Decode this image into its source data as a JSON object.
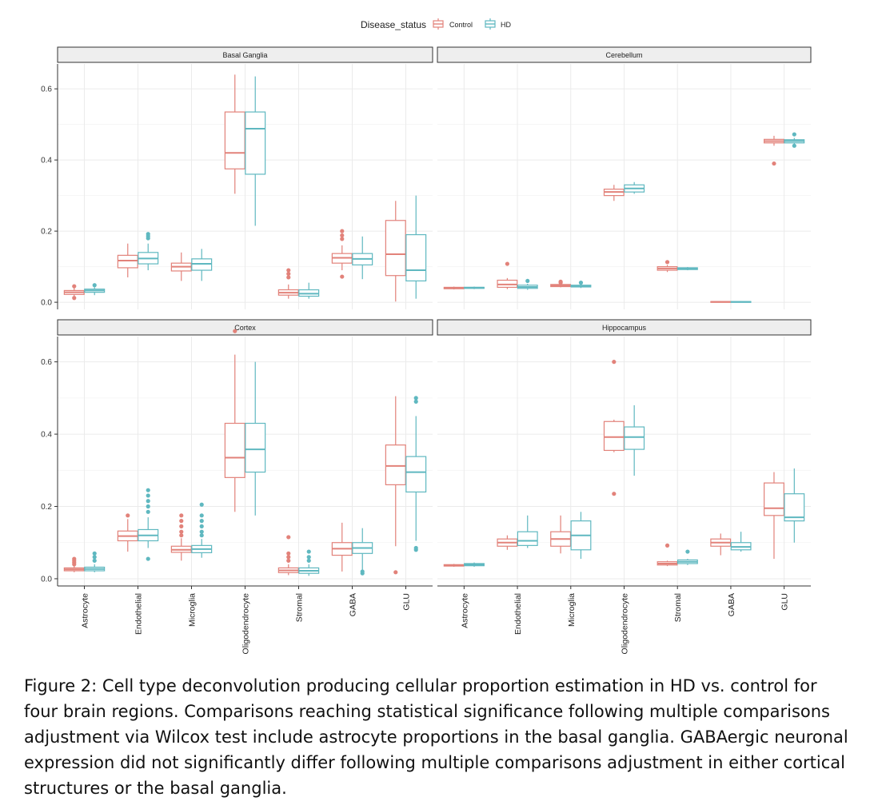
{
  "legend": {
    "title": "Disease_status"
  },
  "caption": "Figure 2: Cell type deconvolution producing cellular proportion estimation in HD vs. control for four brain regions. Comparisons reaching statistical significance following multiple comparisons adjustment via Wilcox test include astrocyte proportions in the basal ganglia. GABAergic neuronal expression did not significantly differ following multiple comparisons adjustment in either cortical structures or the basal ganglia.",
  "chart_data": {
    "type": "boxplot",
    "facet_layout": "2x2",
    "legend_position": "top",
    "categories": [
      "Astrocyte",
      "Endothelial",
      "Microglia",
      "Oligodendrocyte",
      "Stromal",
      "GABA",
      "GLU"
    ],
    "y_ticks": [
      0.0,
      0.2,
      0.4,
      0.6
    ],
    "y_tick_labels": [
      "0.0",
      "0.2",
      "0.4",
      "0.6"
    ],
    "ylim": [
      -0.02,
      0.67
    ],
    "grid": true,
    "series_names": [
      "Control",
      "HD"
    ],
    "colors": {
      "Control": "#e2827a",
      "HD": "#5fb8c0",
      "strip_fill": "#eeeeee"
    },
    "panels": [
      {
        "title": "Basal Ganglia",
        "Control": [
          {
            "min": 0.015,
            "q1": 0.022,
            "med": 0.028,
            "q3": 0.033,
            "max": 0.04,
            "out": [
              0.012,
              0.045
            ]
          },
          {
            "min": 0.07,
            "q1": 0.097,
            "med": 0.117,
            "q3": 0.132,
            "max": 0.165,
            "out": []
          },
          {
            "min": 0.06,
            "q1": 0.088,
            "med": 0.1,
            "q3": 0.11,
            "max": 0.14,
            "out": []
          },
          {
            "min": 0.305,
            "q1": 0.375,
            "med": 0.42,
            "q3": 0.535,
            "max": 0.64,
            "out": []
          },
          {
            "min": 0.01,
            "q1": 0.02,
            "med": 0.027,
            "q3": 0.035,
            "max": 0.05,
            "out": [
              0.07,
              0.08,
              0.09
            ]
          },
          {
            "min": 0.09,
            "q1": 0.11,
            "med": 0.125,
            "q3": 0.137,
            "max": 0.16,
            "out": [
              0.072,
              0.178,
              0.188,
              0.2
            ]
          },
          {
            "min": 0.002,
            "q1": 0.075,
            "med": 0.135,
            "q3": 0.23,
            "max": 0.285,
            "out": []
          }
        ],
        "HD": [
          {
            "min": 0.02,
            "q1": 0.028,
            "med": 0.033,
            "q3": 0.037,
            "max": 0.042,
            "out": [
              0.048
            ]
          },
          {
            "min": 0.09,
            "q1": 0.108,
            "med": 0.123,
            "q3": 0.14,
            "max": 0.165,
            "out": [
              0.18,
              0.186,
              0.192
            ]
          },
          {
            "min": 0.06,
            "q1": 0.09,
            "med": 0.108,
            "q3": 0.122,
            "max": 0.15,
            "out": []
          },
          {
            "min": 0.215,
            "q1": 0.36,
            "med": 0.488,
            "q3": 0.535,
            "max": 0.635,
            "out": []
          },
          {
            "min": 0.01,
            "q1": 0.017,
            "med": 0.024,
            "q3": 0.035,
            "max": 0.055,
            "out": []
          },
          {
            "min": 0.065,
            "q1": 0.105,
            "med": 0.122,
            "q3": 0.137,
            "max": 0.185,
            "out": []
          },
          {
            "min": 0.01,
            "q1": 0.06,
            "med": 0.09,
            "q3": 0.19,
            "max": 0.3,
            "out": []
          }
        ]
      },
      {
        "title": "Cerebellum",
        "Control": [
          {
            "min": 0.036,
            "q1": 0.038,
            "med": 0.04,
            "q3": 0.042,
            "max": 0.044,
            "out": []
          },
          {
            "min": 0.037,
            "q1": 0.042,
            "med": 0.05,
            "q3": 0.062,
            "max": 0.068,
            "out": [
              0.108
            ]
          },
          {
            "min": 0.042,
            "q1": 0.044,
            "med": 0.047,
            "q3": 0.05,
            "max": 0.052,
            "out": [
              0.055,
              0.058
            ]
          },
          {
            "min": 0.285,
            "q1": 0.3,
            "med": 0.31,
            "q3": 0.318,
            "max": 0.33,
            "out": []
          },
          {
            "min": 0.085,
            "q1": 0.09,
            "med": 0.095,
            "q3": 0.1,
            "max": 0.105,
            "out": [
              0.113
            ]
          },
          {
            "min": 0.0,
            "q1": 0.0,
            "med": 0.001,
            "q3": 0.002,
            "max": 0.003,
            "out": []
          },
          {
            "min": 0.44,
            "q1": 0.448,
            "med": 0.453,
            "q3": 0.458,
            "max": 0.468,
            "out": [
              0.39
            ]
          }
        ],
        "HD": [
          {
            "min": 0.037,
            "q1": 0.039,
            "med": 0.041,
            "q3": 0.042,
            "max": 0.044,
            "out": []
          },
          {
            "min": 0.035,
            "q1": 0.039,
            "med": 0.043,
            "q3": 0.048,
            "max": 0.052,
            "out": [
              0.06
            ]
          },
          {
            "min": 0.04,
            "q1": 0.043,
            "med": 0.045,
            "q3": 0.048,
            "max": 0.05,
            "out": [
              0.055
            ]
          },
          {
            "min": 0.305,
            "q1": 0.31,
            "med": 0.32,
            "q3": 0.33,
            "max": 0.338,
            "out": []
          },
          {
            "min": 0.09,
            "q1": 0.092,
            "med": 0.095,
            "q3": 0.097,
            "max": 0.099,
            "out": []
          },
          {
            "min": 0.0,
            "q1": 0.0,
            "med": 0.001,
            "q3": 0.002,
            "max": 0.003,
            "out": []
          },
          {
            "min": 0.445,
            "q1": 0.448,
            "med": 0.453,
            "q3": 0.457,
            "max": 0.462,
            "out": [
              0.44,
              0.472
            ]
          }
        ]
      },
      {
        "title": "Cortex",
        "Control": [
          {
            "min": 0.018,
            "q1": 0.022,
            "med": 0.026,
            "q3": 0.03,
            "max": 0.036,
            "out": [
              0.04,
              0.045,
              0.05,
              0.055
            ]
          },
          {
            "min": 0.075,
            "q1": 0.105,
            "med": 0.118,
            "q3": 0.132,
            "max": 0.165,
            "out": [
              0.175
            ]
          },
          {
            "min": 0.05,
            "q1": 0.073,
            "med": 0.08,
            "q3": 0.09,
            "max": 0.112,
            "out": [
              0.12,
              0.13,
              0.145,
              0.16,
              0.175
            ]
          },
          {
            "min": 0.185,
            "q1": 0.28,
            "med": 0.335,
            "q3": 0.43,
            "max": 0.62,
            "out": [
              0.685
            ]
          },
          {
            "min": 0.01,
            "q1": 0.017,
            "med": 0.023,
            "q3": 0.03,
            "max": 0.04,
            "out": [
              0.05,
              0.06,
              0.07,
              0.115
            ]
          },
          {
            "min": 0.02,
            "q1": 0.065,
            "med": 0.083,
            "q3": 0.1,
            "max": 0.155,
            "out": []
          },
          {
            "min": 0.09,
            "q1": 0.26,
            "med": 0.312,
            "q3": 0.37,
            "max": 0.505,
            "out": [
              0.018
            ]
          }
        ],
        "HD": [
          {
            "min": 0.018,
            "q1": 0.022,
            "med": 0.027,
            "q3": 0.032,
            "max": 0.04,
            "out": [
              0.05,
              0.06,
              0.07
            ]
          },
          {
            "min": 0.085,
            "q1": 0.105,
            "med": 0.12,
            "q3": 0.136,
            "max": 0.17,
            "out": [
              0.055,
              0.185,
              0.2,
              0.215,
              0.23,
              0.245
            ]
          },
          {
            "min": 0.058,
            "q1": 0.072,
            "med": 0.082,
            "q3": 0.092,
            "max": 0.11,
            "out": [
              0.12,
              0.13,
              0.145,
              0.16,
              0.175,
              0.205
            ]
          },
          {
            "min": 0.175,
            "q1": 0.295,
            "med": 0.358,
            "q3": 0.43,
            "max": 0.6,
            "out": []
          },
          {
            "min": 0.008,
            "q1": 0.015,
            "med": 0.022,
            "q3": 0.03,
            "max": 0.04,
            "out": [
              0.05,
              0.06,
              0.075
            ]
          },
          {
            "min": 0.025,
            "q1": 0.07,
            "med": 0.085,
            "q3": 0.1,
            "max": 0.14,
            "out": [
              0.015,
              0.02
            ]
          },
          {
            "min": 0.105,
            "q1": 0.24,
            "med": 0.295,
            "q3": 0.338,
            "max": 0.45,
            "out": [
              0.08,
              0.085,
              0.49,
              0.5
            ]
          }
        ]
      },
      {
        "title": "Hippocampus",
        "Control": [
          {
            "min": 0.033,
            "q1": 0.035,
            "med": 0.037,
            "q3": 0.039,
            "max": 0.041,
            "out": []
          },
          {
            "min": 0.08,
            "q1": 0.09,
            "med": 0.1,
            "q3": 0.11,
            "max": 0.12,
            "out": []
          },
          {
            "min": 0.07,
            "q1": 0.09,
            "med": 0.11,
            "q3": 0.13,
            "max": 0.175,
            "out": []
          },
          {
            "min": 0.35,
            "q1": 0.355,
            "med": 0.392,
            "q3": 0.435,
            "max": 0.44,
            "out": [
              0.235,
              0.6
            ]
          },
          {
            "min": 0.035,
            "q1": 0.038,
            "med": 0.042,
            "q3": 0.047,
            "max": 0.05,
            "out": [
              0.092
            ]
          },
          {
            "min": 0.065,
            "q1": 0.09,
            "med": 0.1,
            "q3": 0.11,
            "max": 0.125,
            "out": []
          },
          {
            "min": 0.055,
            "q1": 0.175,
            "med": 0.195,
            "q3": 0.265,
            "max": 0.295,
            "out": []
          }
        ],
        "HD": [
          {
            "min": 0.033,
            "q1": 0.036,
            "med": 0.039,
            "q3": 0.042,
            "max": 0.045,
            "out": []
          },
          {
            "min": 0.085,
            "q1": 0.092,
            "med": 0.105,
            "q3": 0.13,
            "max": 0.175,
            "out": []
          },
          {
            "min": 0.055,
            "q1": 0.08,
            "med": 0.12,
            "q3": 0.16,
            "max": 0.185,
            "out": []
          },
          {
            "min": 0.285,
            "q1": 0.358,
            "med": 0.392,
            "q3": 0.42,
            "max": 0.48,
            "out": []
          },
          {
            "min": 0.038,
            "q1": 0.042,
            "med": 0.047,
            "q3": 0.052,
            "max": 0.055,
            "out": [
              0.075
            ]
          },
          {
            "min": 0.075,
            "q1": 0.08,
            "med": 0.088,
            "q3": 0.1,
            "max": 0.13,
            "out": []
          },
          {
            "min": 0.1,
            "q1": 0.16,
            "med": 0.17,
            "q3": 0.235,
            "max": 0.305,
            "out": []
          }
        ]
      }
    ]
  }
}
